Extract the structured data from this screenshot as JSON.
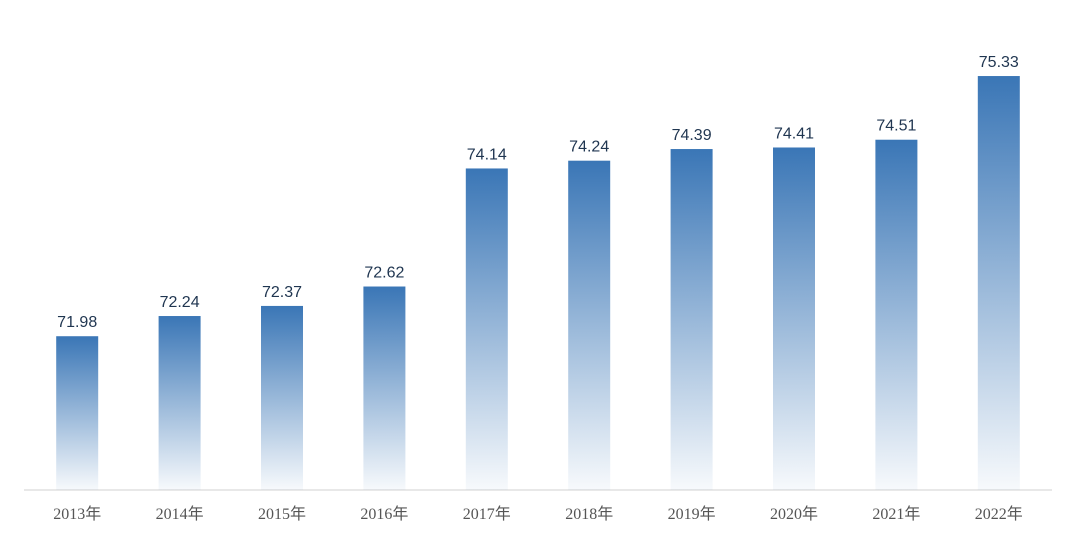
{
  "chart_data": {
    "type": "bar",
    "categories": [
      "2013年",
      "2014年",
      "2015年",
      "2016年",
      "2017年",
      "2018年",
      "2019年",
      "2020年",
      "2021年",
      "2022年"
    ],
    "values": [
      71.98,
      72.24,
      72.37,
      72.62,
      74.14,
      74.24,
      74.39,
      74.41,
      74.51,
      75.33
    ],
    "color": "#3a76b6",
    "ylim": [
      70,
      76
    ],
    "grid": false
  }
}
